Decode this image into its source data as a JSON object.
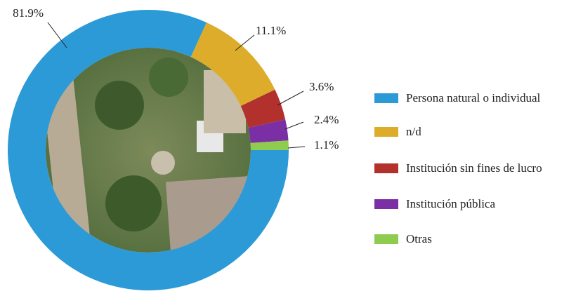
{
  "chart_data": {
    "type": "donut",
    "categories": [
      "Persona natural o individual",
      "n/d",
      "Institución sin fines de lucro",
      "Institución pública",
      "Otras"
    ],
    "values": [
      81.9,
      11.1,
      3.6,
      2.4,
      1.1
    ],
    "value_labels": [
      "81.9%",
      "11.1%",
      "3.6%",
      "2.4%",
      "1.1%"
    ],
    "colors": [
      "#2b9ad6",
      "#ddac2b",
      "#b3312d",
      "#7a2fa4",
      "#8ecb4f"
    ],
    "legend": "right"
  }
}
